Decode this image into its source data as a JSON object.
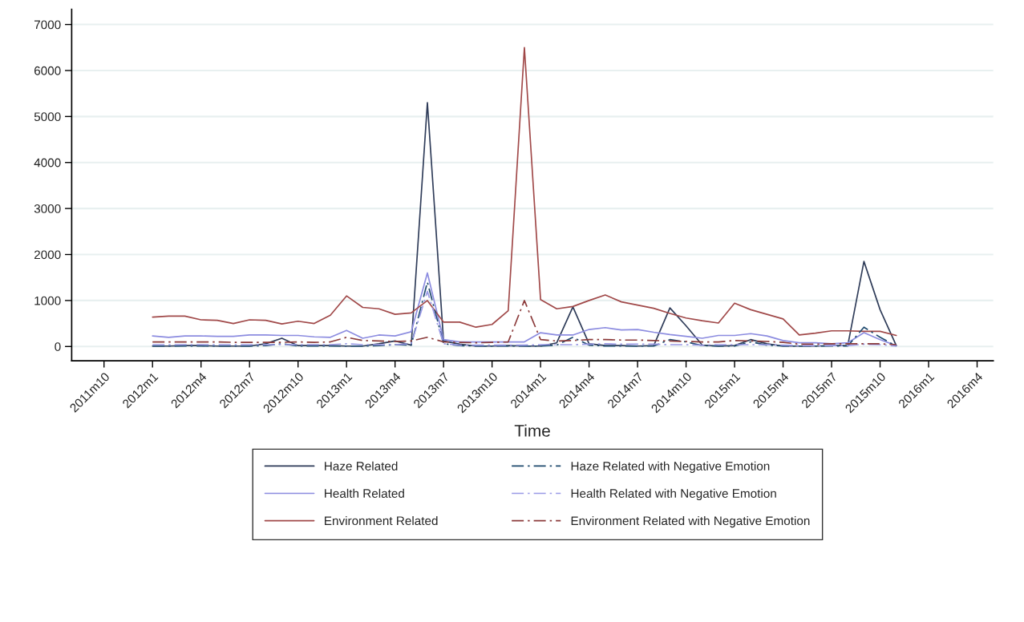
{
  "chart_data": {
    "type": "line",
    "xlabel": "Time",
    "x": [
      "2012-01",
      "2012-02",
      "2012-03",
      "2012-04",
      "2012-05",
      "2012-06",
      "2012-07",
      "2012-08",
      "2012-09",
      "2012-10",
      "2012-11",
      "2012-12",
      "2013-01",
      "2013-02",
      "2013-03",
      "2013-04",
      "2013-05",
      "2013-06",
      "2013-07",
      "2013-08",
      "2013-09",
      "2013-10",
      "2013-11",
      "2013-12",
      "2014-01",
      "2014-02",
      "2014-03",
      "2014-04",
      "2014-05",
      "2014-06",
      "2014-07",
      "2014-08",
      "2014-09",
      "2014-10",
      "2014-11",
      "2014-12",
      "2015-01",
      "2015-02",
      "2015-03",
      "2015-04",
      "2015-05",
      "2015-06",
      "2015-07",
      "2015-08",
      "2015-09",
      "2015-10",
      "2015-11"
    ],
    "series": [
      {
        "name": "Haze Related",
        "color": "#2e3b58",
        "line_style": "solid",
        "values": [
          10,
          10,
          20,
          20,
          10,
          10,
          10,
          60,
          180,
          20,
          20,
          20,
          10,
          10,
          60,
          120,
          30,
          5300,
          120,
          50,
          10,
          10,
          20,
          10,
          10,
          80,
          860,
          60,
          20,
          20,
          10,
          20,
          840,
          450,
          30,
          10,
          20,
          150,
          60,
          10,
          10,
          10,
          20,
          20,
          1850,
          800,
          20
        ]
      },
      {
        "name": "Health Related",
        "color": "#8c8ce0",
        "line_style": "solid",
        "values": [
          230,
          200,
          230,
          230,
          220,
          220,
          250,
          250,
          240,
          240,
          210,
          200,
          350,
          180,
          250,
          230,
          320,
          1600,
          150,
          100,
          100,
          100,
          100,
          100,
          300,
          250,
          250,
          370,
          410,
          360,
          370,
          310,
          260,
          220,
          180,
          240,
          240,
          280,
          230,
          130,
          80,
          80,
          60,
          80,
          300,
          150,
          20
        ]
      },
      {
        "name": "Environment Related",
        "color": "#a04848",
        "line_style": "solid",
        "values": [
          640,
          660,
          660,
          580,
          570,
          500,
          580,
          570,
          490,
          550,
          500,
          680,
          1100,
          850,
          820,
          700,
          730,
          1000,
          530,
          530,
          420,
          480,
          780,
          6500,
          1020,
          820,
          870,
          1000,
          1120,
          970,
          900,
          830,
          720,
          620,
          560,
          510,
          940,
          800,
          700,
          600,
          250,
          290,
          340,
          340,
          330,
          330,
          240
        ]
      },
      {
        "name": "Haze Related with Negative Emotion",
        "color": "#1f4a6e",
        "line_style": "dashed",
        "values": [
          10,
          10,
          10,
          10,
          10,
          10,
          10,
          20,
          60,
          10,
          10,
          10,
          10,
          10,
          20,
          40,
          30,
          1400,
          60,
          20,
          10,
          10,
          10,
          10,
          10,
          30,
          200,
          30,
          10,
          10,
          10,
          10,
          150,
          100,
          20,
          10,
          10,
          100,
          30,
          10,
          10,
          10,
          10,
          10,
          420,
          200,
          10
        ]
      },
      {
        "name": "Health Related with Negative Emotion",
        "color": "#9a9ae6",
        "line_style": "dashed",
        "values": [
          40,
          40,
          40,
          40,
          40,
          40,
          40,
          40,
          40,
          40,
          40,
          40,
          60,
          40,
          40,
          40,
          60,
          1200,
          60,
          30,
          30,
          30,
          30,
          30,
          40,
          40,
          40,
          50,
          60,
          50,
          50,
          50,
          40,
          40,
          30,
          40,
          40,
          40,
          40,
          30,
          20,
          20,
          20,
          20,
          50,
          40,
          10
        ]
      },
      {
        "name": "Environment Related with Negative Emotion",
        "color": "#8b3a3a",
        "line_style": "dashed",
        "values": [
          100,
          100,
          100,
          100,
          100,
          90,
          90,
          90,
          90,
          100,
          90,
          100,
          200,
          130,
          120,
          110,
          120,
          200,
          100,
          90,
          80,
          90,
          100,
          1000,
          150,
          120,
          130,
          150,
          150,
          140,
          140,
          130,
          120,
          110,
          100,
          100,
          130,
          120,
          110,
          90,
          50,
          50,
          60,
          60,
          60,
          60,
          40
        ]
      }
    ],
    "xlim": [
      "2011-08",
      "2016-05"
    ],
    "xticks": [
      {
        "value": "2011-10",
        "label": "2011m10"
      },
      {
        "value": "2012-01",
        "label": "2012m1"
      },
      {
        "value": "2012-04",
        "label": "2012m4"
      },
      {
        "value": "2012-07",
        "label": "2012m7"
      },
      {
        "value": "2012-10",
        "label": "2012m10"
      },
      {
        "value": "2013-01",
        "label": "2013m1"
      },
      {
        "value": "2013-04",
        "label": "2013m4"
      },
      {
        "value": "2013-07",
        "label": "2013m7"
      },
      {
        "value": "2013-10",
        "label": "2013m10"
      },
      {
        "value": "2014-01",
        "label": "2014m1"
      },
      {
        "value": "2014-04",
        "label": "2014m4"
      },
      {
        "value": "2014-07",
        "label": "2014m7"
      },
      {
        "value": "2014-10",
        "label": "2014m10"
      },
      {
        "value": "2015-01",
        "label": "2015m1"
      },
      {
        "value": "2015-04",
        "label": "2015m4"
      },
      {
        "value": "2015-07",
        "label": "2015m7"
      },
      {
        "value": "2015-10",
        "label": "2015m10"
      },
      {
        "value": "2016-01",
        "label": "2016m1"
      },
      {
        "value": "2016-04",
        "label": "2016m4"
      }
    ],
    "ylim": [
      -310,
      7330
    ],
    "yticks": [
      0,
      1000,
      2000,
      3000,
      4000,
      5000,
      6000,
      7000
    ],
    "grid": "y",
    "legend": "bottom"
  }
}
